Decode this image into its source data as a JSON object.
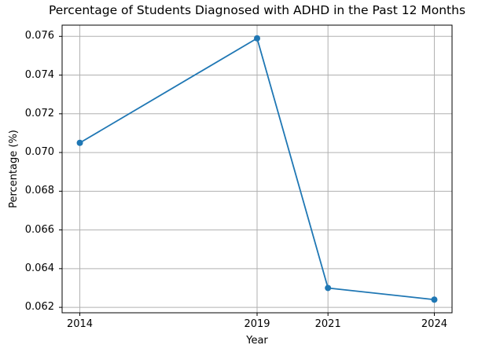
{
  "chart_data": {
    "type": "line",
    "title": "Percentage of Students Diagnosed with ADHD in the Past 12 Months",
    "xlabel": "Year",
    "ylabel": "Percentage (%)",
    "x": [
      2014,
      2019,
      2021,
      2024
    ],
    "values": [
      0.0705,
      0.0759,
      0.063,
      0.0624
    ],
    "xticks": {
      "values": [
        2014,
        2019,
        2021,
        2024
      ],
      "labels": [
        "2014",
        "2019",
        "2021",
        "2024"
      ]
    },
    "yticks": {
      "values": [
        0.062,
        0.064,
        0.066,
        0.068,
        0.07,
        0.072,
        0.074,
        0.076
      ],
      "labels": [
        "0.062",
        "0.064",
        "0.066",
        "0.068",
        "0.070",
        "0.072",
        "0.074",
        "0.076"
      ]
    },
    "xlim": [
      2013.5,
      2024.5
    ],
    "ylim": [
      0.06172,
      0.07658
    ],
    "grid": true,
    "legend": false,
    "line_color": "#1f77b4",
    "marker": "o",
    "marker_color": "#1f77b4",
    "grid_color": "#b0b0b0",
    "spine_color": "#000000",
    "background_color": "#ffffff"
  }
}
